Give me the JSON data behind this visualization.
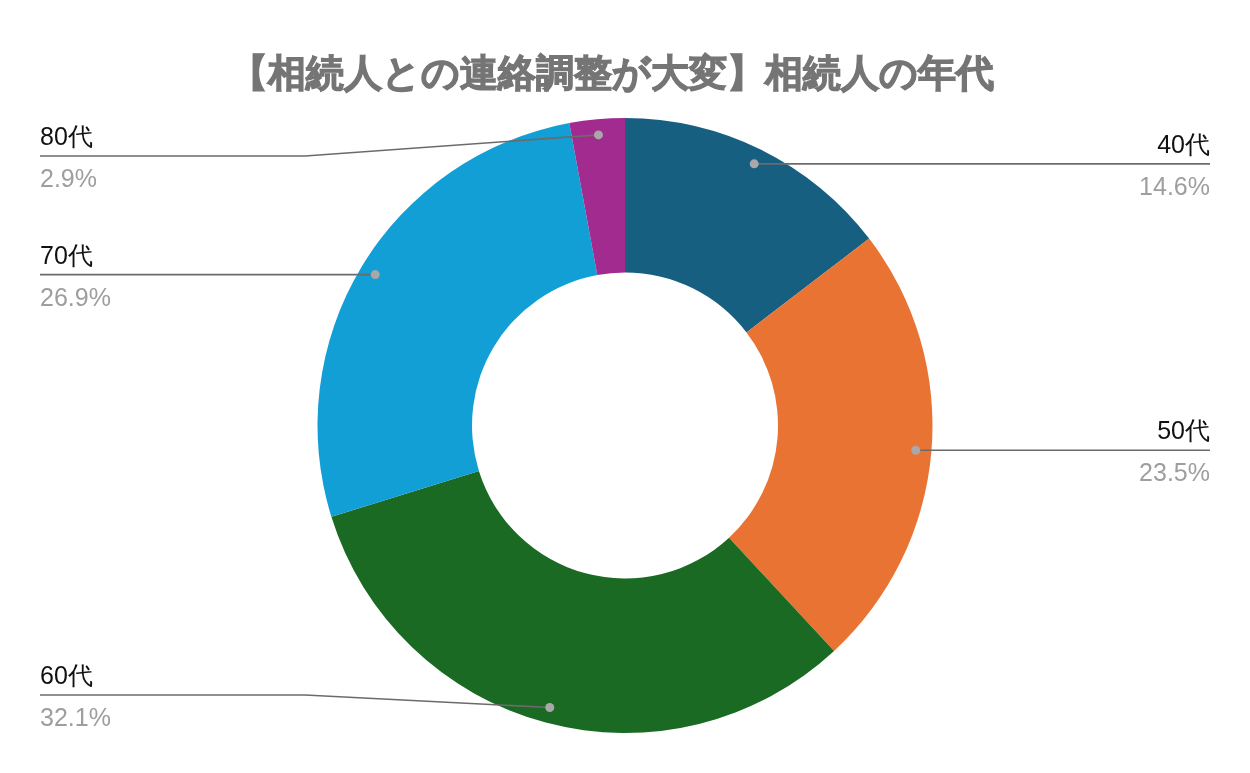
{
  "chart_data": {
    "type": "donut",
    "title": "【相続人との連絡調整が大変】相続人の年代",
    "categories": [
      "40代",
      "50代",
      "60代",
      "70代",
      "80代"
    ],
    "values": [
      14.6,
      23.5,
      32.1,
      26.9,
      2.9
    ],
    "value_labels": [
      "14.6%",
      "23.5%",
      "32.1%",
      "26.9%",
      "2.9%"
    ],
    "colors": [
      "#175f80",
      "#e97332",
      "#1b6a23",
      "#129fd5",
      "#a22b90"
    ]
  }
}
